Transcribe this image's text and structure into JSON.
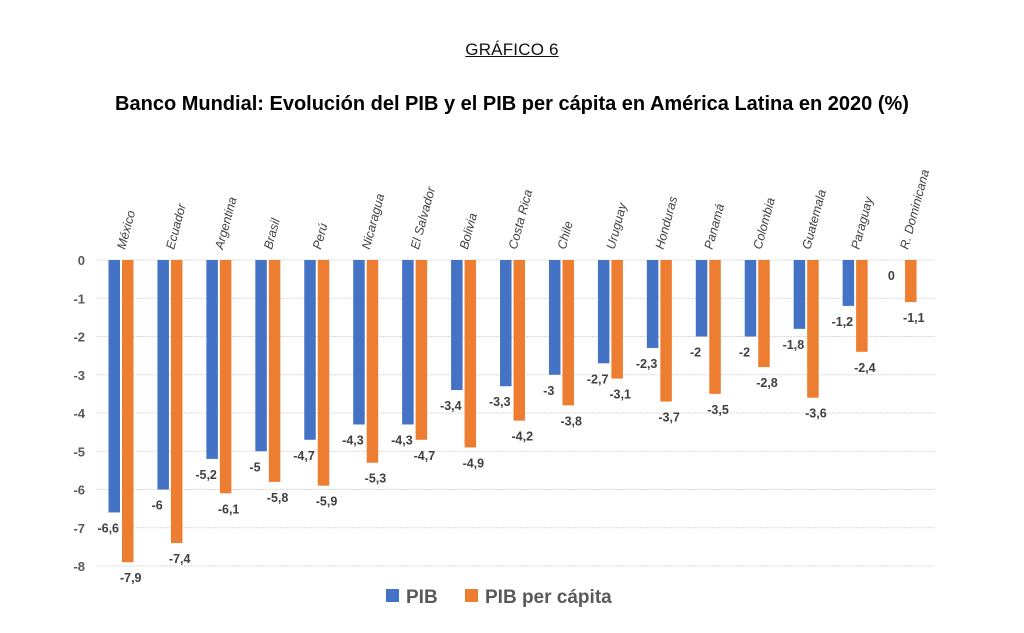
{
  "header": {
    "kicker": "GRÁFICO 6",
    "title": "Banco Mundial: Evolución del PIB y el PIB per cápita en América Latina en 2020 (%)"
  },
  "chart_data": {
    "type": "bar",
    "title": "Banco Mundial: Evolución del PIB y el PIB per cápita en América Latina en 2020 (%)",
    "xlabel": "",
    "ylabel": "",
    "ylim": [
      -8,
      0
    ],
    "yticks": [
      0,
      -1,
      -2,
      -3,
      -4,
      -5,
      -6,
      -7,
      -8
    ],
    "ytick_labels": [
      "0",
      "-1",
      "-2",
      "-3",
      "-4",
      "-5",
      "-6",
      "-7",
      "-8"
    ],
    "grid": true,
    "legend_position": "bottom",
    "categories": [
      "México",
      "Ecuador",
      "Argentina",
      "Brasil",
      "Perú",
      "Nicaragua",
      "El Salvador",
      "Bolivia",
      "Costa Rica",
      "Chile",
      "Uruguay",
      "Honduras",
      "Panamá",
      "Colombia",
      "Guatemala",
      "Paraguay",
      "R. Dominicana"
    ],
    "series": [
      {
        "name": "PIB",
        "color": "#4472C4",
        "values": [
          -6.6,
          -6,
          -5.2,
          -5,
          -4.7,
          -4.3,
          -4.3,
          -3.4,
          -3.3,
          -3,
          -2.7,
          -2.3,
          -2,
          -2,
          -1.8,
          -1.2,
          0
        ],
        "labels": [
          "-6,6",
          "-6",
          "-5,2",
          "-5",
          "-4,7",
          "-4,3",
          "-4,3",
          "-3,4",
          "-3,3",
          "-3",
          "-2,7",
          "-2,3",
          "-2",
          "-2",
          "-1,8",
          "-1,2",
          "0"
        ]
      },
      {
        "name": "PIB per cápita",
        "color": "#ED7D31",
        "values": [
          -7.9,
          -7.4,
          -6.1,
          -5.8,
          -5.9,
          -5.3,
          -4.7,
          -4.9,
          -4.2,
          -3.8,
          -3.1,
          -3.7,
          -3.5,
          -2.8,
          -3.6,
          -2.4,
          -1.1
        ],
        "labels": [
          "-7,9",
          "-7,4",
          "-6,1",
          "-5,8",
          "-5,9",
          "-5,3",
          "-4,7",
          "-4,9",
          "-4,2",
          "-3,8",
          "-3,1",
          "-3,7",
          "-3,5",
          "-2,8",
          "-3,6",
          "-2,4",
          "-1,1"
        ]
      }
    ]
  }
}
